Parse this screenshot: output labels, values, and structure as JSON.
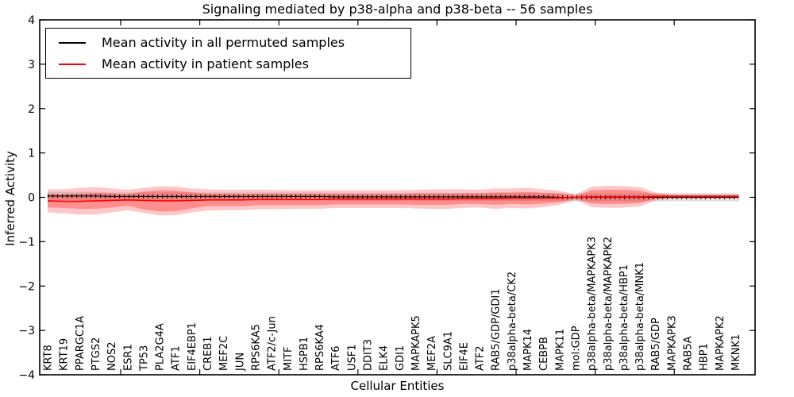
{
  "title": "Signaling mediated by p38-alpha and p38-beta -- 56 samples",
  "xlabel": "Cellular Entities",
  "ylabel": "Inferred Activity",
  "legend": [
    {
      "label": "Mean activity in all permuted samples",
      "color": "#000000"
    },
    {
      "label": "Mean activity in patient samples",
      "color": "#ff0000"
    }
  ],
  "colors": {
    "patient_line": "#ff0000",
    "permuted_line": "#000000",
    "patient_band_outer": "rgba(255,0,0,0.22)",
    "patient_band_inner": "rgba(255,0,0,0.28)",
    "permuted_band": "rgba(0,0,0,0.12)",
    "spine": "#000000",
    "background": "#ffffff"
  },
  "chart_data": {
    "type": "line",
    "title": "Signaling mediated by p38-alpha and p38-beta -- 56 samples",
    "xlabel": "Cellular Entities",
    "ylabel": "Inferred Activity",
    "ylim": [
      -4,
      4
    ],
    "yticks": [
      -4,
      -3,
      -2,
      -1,
      0,
      1,
      2,
      3,
      4
    ],
    "grid": false,
    "legend_position": "upper left",
    "categories": [
      "KRT8",
      "KRT19",
      "PPARGC1A",
      "PTGS2",
      "NOS2",
      "ESR1",
      "TP53",
      "PLA2G4A",
      "ATF1",
      "EIF4EBP1",
      "CREB1",
      "MEF2C",
      "JUN",
      "RPS6KA5",
      "ATF2/c-Jun",
      "MITF",
      "HSPB1",
      "RPS6KA4",
      "ATF6",
      "USF1",
      "DDIT3",
      "ELK4",
      "GDI1",
      "MAPKAPK5",
      "MEF2A",
      "SLC9A1",
      "EIF4E",
      "ATF2",
      "RAB5/GDP/GDI1",
      "p38alpha-beta/CK2",
      "MAPK14",
      "CEBPB",
      "MAPK11",
      "mol:GDP",
      "p38alpha-beta/MAPKAPK3",
      "p38alpha-beta/MAPKAPK2",
      "p38alpha-beta/HBP1",
      "p38alpha-beta/MNK1",
      "RAB5/GDP",
      "MAPKAPK3",
      "RAB5A",
      "HBP1",
      "MAPKAPK2",
      "MKNK1"
    ],
    "series": [
      {
        "name": "Mean activity in all permuted samples",
        "color": "#000000",
        "values": [
          0.03,
          0.03,
          0.03,
          0.03,
          0.02,
          0.02,
          0.02,
          0.02,
          0.02,
          0.02,
          0.02,
          0.02,
          0.02,
          0.02,
          0.02,
          0.02,
          0.02,
          0.02,
          0.01,
          0.01,
          0.01,
          0.01,
          0.01,
          0.01,
          0.01,
          0.01,
          0.01,
          0.01,
          0.01,
          0.01,
          0.01,
          0.01,
          0.0,
          0.0,
          0.0,
          0.0,
          0.0,
          0.0,
          0.0,
          0.0,
          0.0,
          0.0,
          0.0,
          0.0
        ]
      },
      {
        "name": "Mean activity in patient samples",
        "color": "#ff0000",
        "values": [
          -0.08,
          -0.09,
          -0.09,
          -0.08,
          -0.07,
          -0.06,
          -0.07,
          -0.08,
          -0.08,
          -0.07,
          -0.06,
          -0.06,
          -0.06,
          -0.05,
          -0.05,
          -0.05,
          -0.05,
          -0.05,
          -0.04,
          -0.04,
          -0.04,
          -0.04,
          -0.04,
          -0.04,
          -0.04,
          -0.04,
          -0.03,
          -0.03,
          -0.03,
          -0.02,
          -0.02,
          -0.02,
          -0.01,
          0.0,
          0.01,
          0.01,
          0.01,
          0.01,
          0.02,
          0.02,
          0.02,
          0.02,
          0.02,
          0.02
        ]
      }
    ],
    "bands": {
      "permuted_half_width": 0.09,
      "patient_inner_half_widths": [
        0.15,
        0.15,
        0.17,
        0.18,
        0.16,
        0.13,
        0.2,
        0.24,
        0.23,
        0.18,
        0.14,
        0.14,
        0.14,
        0.13,
        0.13,
        0.13,
        0.13,
        0.13,
        0.12,
        0.12,
        0.12,
        0.12,
        0.12,
        0.13,
        0.13,
        0.13,
        0.12,
        0.12,
        0.14,
        0.13,
        0.14,
        0.12,
        0.1,
        0.03,
        0.15,
        0.16,
        0.16,
        0.14,
        0.05,
        0.03,
        0.03,
        0.03,
        0.03,
        0.03
      ],
      "patient_outer_half_widths": [
        0.26,
        0.27,
        0.3,
        0.31,
        0.27,
        0.23,
        0.28,
        0.33,
        0.32,
        0.27,
        0.24,
        0.23,
        0.23,
        0.22,
        0.22,
        0.21,
        0.21,
        0.21,
        0.2,
        0.2,
        0.2,
        0.2,
        0.2,
        0.21,
        0.22,
        0.22,
        0.21,
        0.2,
        0.23,
        0.22,
        0.23,
        0.2,
        0.16,
        0.06,
        0.23,
        0.25,
        0.24,
        0.22,
        0.09,
        0.05,
        0.05,
        0.05,
        0.05,
        0.05
      ]
    }
  }
}
